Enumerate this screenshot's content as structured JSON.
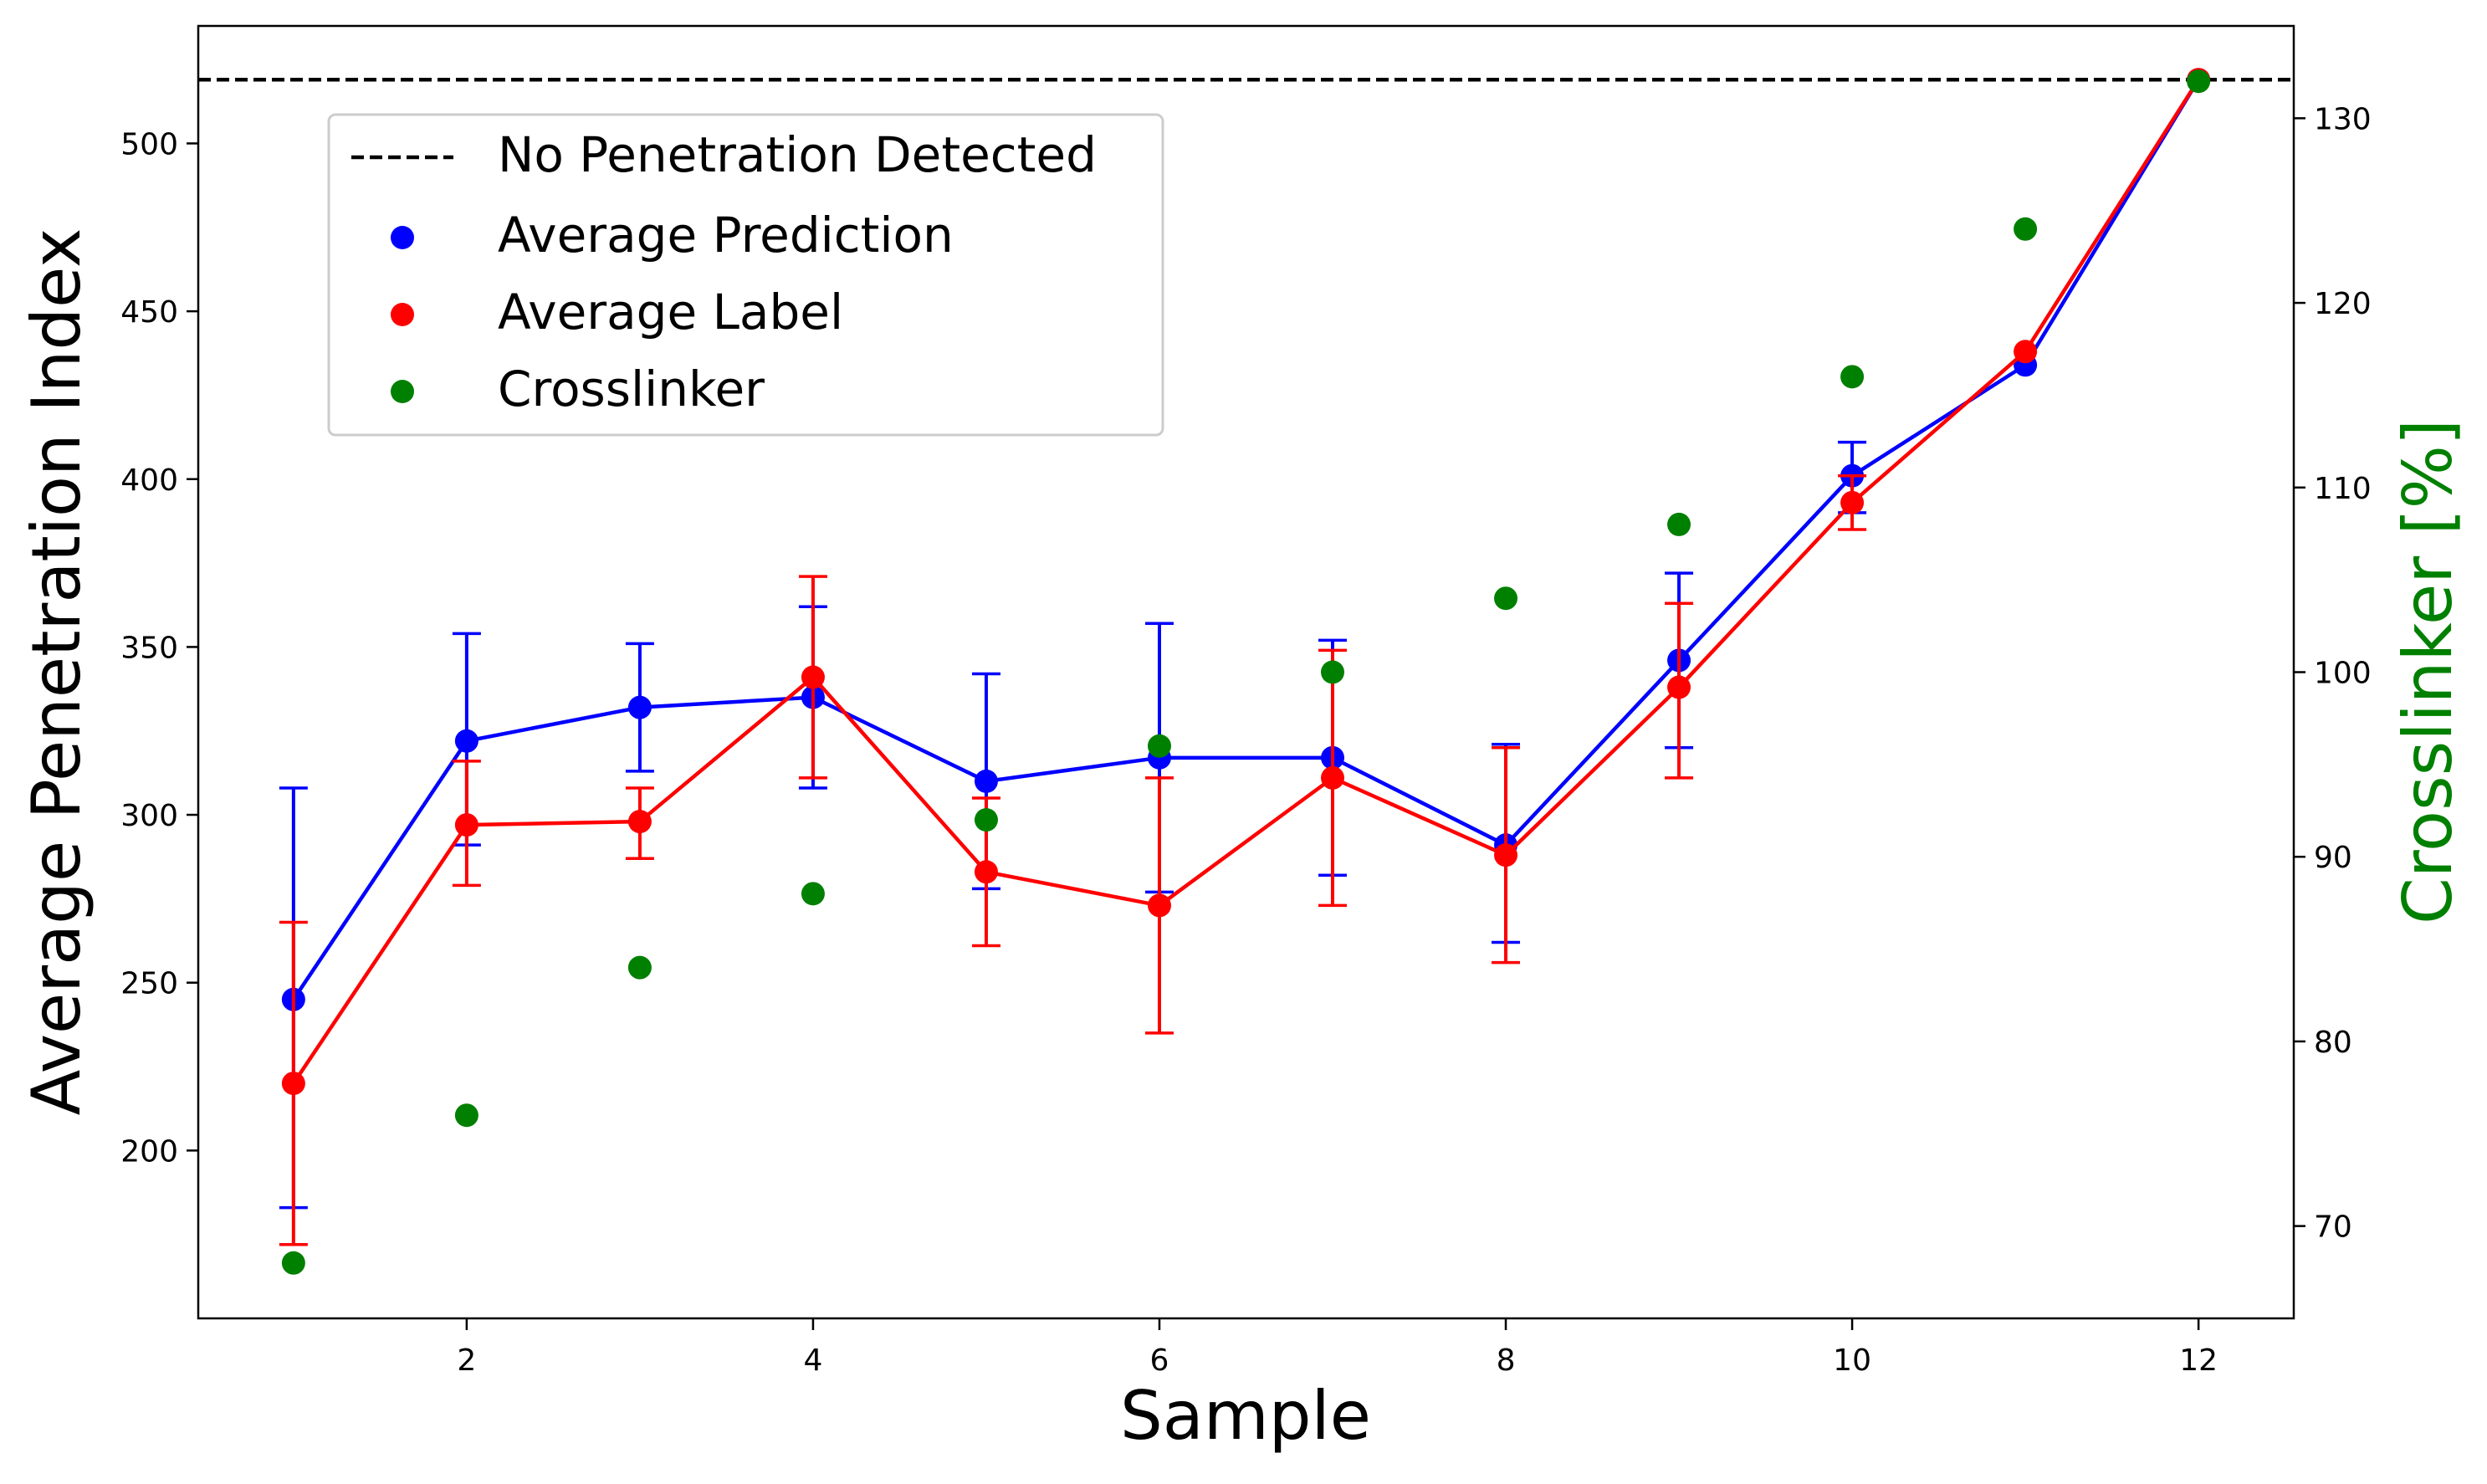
{
  "chart_data": {
    "type": "line",
    "xlabel": "Sample",
    "ylabel": "Average Penetration Index",
    "y2label": "Crosslinker [%]",
    "xlim": [
      0.45,
      12.55
    ],
    "ylim": [
      150,
      535
    ],
    "y2lim": [
      65,
      135
    ],
    "xticks": [
      2,
      4,
      6,
      8,
      10,
      12
    ],
    "yticks": [
      200,
      250,
      300,
      350,
      400,
      450,
      500
    ],
    "y2ticks": [
      70,
      80,
      90,
      100,
      110,
      120,
      130
    ],
    "grid": false,
    "legend_position": "upper-left",
    "hline": {
      "name": "No Penetration Detected",
      "y": 519,
      "color": "#000000",
      "style": "dashed"
    },
    "x": [
      1,
      2,
      3,
      4,
      5,
      6,
      7,
      8,
      9,
      10,
      11,
      12
    ],
    "series": [
      {
        "name": "Average Prediction",
        "color": "#0000ff",
        "axis": "left",
        "values": [
          245,
          322,
          332,
          335,
          310,
          317,
          317,
          291,
          346,
          401,
          434,
          519
        ],
        "err_low": [
          183,
          291,
          313,
          308,
          278,
          277,
          282,
          262,
          320,
          390,
          null,
          null
        ],
        "err_high": [
          308,
          354,
          351,
          362,
          342,
          357,
          352,
          321,
          372,
          411,
          null,
          null
        ]
      },
      {
        "name": "Average Label",
        "color": "#ff0000",
        "axis": "left",
        "values": [
          220,
          297,
          298,
          341,
          283,
          273,
          311,
          288,
          338,
          393,
          438,
          519
        ],
        "err_low": [
          172,
          279,
          287,
          311,
          261,
          235,
          273,
          256,
          311,
          385,
          null,
          null
        ],
        "err_high": [
          268,
          316,
          308,
          371,
          305,
          311,
          349,
          320,
          363,
          401,
          null,
          null
        ]
      },
      {
        "name": "Crosslinker",
        "color": "#008000",
        "axis": "right",
        "values": [
          68,
          76,
          84,
          88,
          92,
          96,
          100,
          104,
          108,
          116,
          124,
          132
        ]
      }
    ],
    "colors": {
      "axis": "#000000",
      "y2label": "#008000",
      "legend_border": "#cccccc"
    }
  }
}
